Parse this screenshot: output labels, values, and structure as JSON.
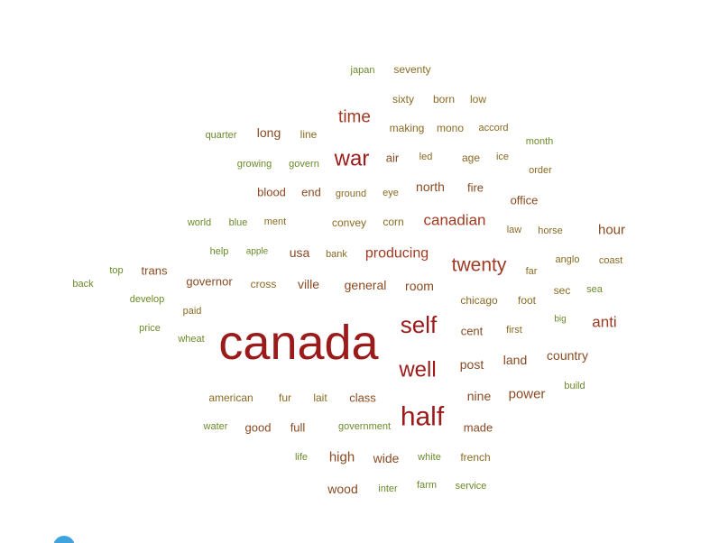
{
  "chart_data": {
    "type": "wordcloud",
    "title": "",
    "colors": {
      "dark": "#9b1b1b",
      "medium": "#a03a22",
      "brown": "#8a4a22",
      "olive": "#8a6a22",
      "green": "#6b8a2a"
    },
    "words": [
      {
        "text": "canada",
        "weight": 100,
        "tone": "dark"
      },
      {
        "text": "half",
        "weight": 48,
        "tone": "dark"
      },
      {
        "text": "self",
        "weight": 44,
        "tone": "dark"
      },
      {
        "text": "well",
        "weight": 42,
        "tone": "dark"
      },
      {
        "text": "war",
        "weight": 40,
        "tone": "dark"
      },
      {
        "text": "twenty",
        "weight": 36,
        "tone": "medium"
      },
      {
        "text": "time",
        "weight": 34,
        "tone": "medium"
      },
      {
        "text": "canadian",
        "weight": 30,
        "tone": "medium"
      },
      {
        "text": "anti",
        "weight": 30,
        "tone": "medium"
      },
      {
        "text": "producing",
        "weight": 28,
        "tone": "medium"
      },
      {
        "text": "hour",
        "weight": 26,
        "tone": "brown"
      },
      {
        "text": "power",
        "weight": 26,
        "tone": "brown"
      },
      {
        "text": "high",
        "weight": 26,
        "tone": "brown"
      },
      {
        "text": "long",
        "weight": 24,
        "tone": "brown"
      },
      {
        "text": "north",
        "weight": 24,
        "tone": "brown"
      },
      {
        "text": "usa",
        "weight": 24,
        "tone": "brown"
      },
      {
        "text": "general",
        "weight": 24,
        "tone": "brown"
      },
      {
        "text": "room",
        "weight": 24,
        "tone": "brown"
      },
      {
        "text": "post",
        "weight": 24,
        "tone": "brown"
      },
      {
        "text": "nine",
        "weight": 24,
        "tone": "brown"
      },
      {
        "text": "country",
        "weight": 22,
        "tone": "brown"
      },
      {
        "text": "land",
        "weight": 22,
        "tone": "brown"
      },
      {
        "text": "ville",
        "weight": 22,
        "tone": "brown"
      },
      {
        "text": "wide",
        "weight": 22,
        "tone": "brown"
      },
      {
        "text": "wood",
        "weight": 22,
        "tone": "brown"
      },
      {
        "text": "good",
        "weight": 20,
        "tone": "brown"
      },
      {
        "text": "made",
        "weight": 20,
        "tone": "brown"
      },
      {
        "text": "class",
        "weight": 20,
        "tone": "brown"
      },
      {
        "text": "governor",
        "weight": 20,
        "tone": "brown"
      },
      {
        "text": "trans",
        "weight": 20,
        "tone": "brown"
      },
      {
        "text": "office",
        "weight": 20,
        "tone": "brown"
      },
      {
        "text": "fire",
        "weight": 20,
        "tone": "brown"
      },
      {
        "text": "end",
        "weight": 20,
        "tone": "brown"
      },
      {
        "text": "blood",
        "weight": 20,
        "tone": "brown"
      },
      {
        "text": "air",
        "weight": 20,
        "tone": "brown"
      },
      {
        "text": "cent",
        "weight": 20,
        "tone": "brown"
      },
      {
        "text": "full",
        "weight": 20,
        "tone": "brown"
      },
      {
        "text": "age",
        "weight": 18,
        "tone": "olive"
      },
      {
        "text": "sec",
        "weight": 18,
        "tone": "olive"
      },
      {
        "text": "cross",
        "weight": 18,
        "tone": "olive"
      },
      {
        "text": "chicago",
        "weight": 18,
        "tone": "olive"
      },
      {
        "text": "foot",
        "weight": 18,
        "tone": "olive"
      },
      {
        "text": "french",
        "weight": 18,
        "tone": "olive"
      },
      {
        "text": "american",
        "weight": 18,
        "tone": "olive"
      },
      {
        "text": "fur",
        "weight": 18,
        "tone": "olive"
      },
      {
        "text": "lait",
        "weight": 18,
        "tone": "olive"
      },
      {
        "text": "convey",
        "weight": 18,
        "tone": "olive"
      },
      {
        "text": "corn",
        "weight": 18,
        "tone": "olive"
      },
      {
        "text": "line",
        "weight": 18,
        "tone": "olive"
      },
      {
        "text": "making",
        "weight": 18,
        "tone": "olive"
      },
      {
        "text": "mono",
        "weight": 18,
        "tone": "olive"
      },
      {
        "text": "born",
        "weight": 18,
        "tone": "olive"
      },
      {
        "text": "low",
        "weight": 18,
        "tone": "olive"
      },
      {
        "text": "sixty",
        "weight": 18,
        "tone": "olive"
      },
      {
        "text": "seventy",
        "weight": 18,
        "tone": "olive"
      },
      {
        "text": "accord",
        "weight": 16,
        "tone": "olive"
      },
      {
        "text": "led",
        "weight": 16,
        "tone": "olive"
      },
      {
        "text": "ice",
        "weight": 16,
        "tone": "olive"
      },
      {
        "text": "eye",
        "weight": 16,
        "tone": "olive"
      },
      {
        "text": "order",
        "weight": 16,
        "tone": "olive"
      },
      {
        "text": "law",
        "weight": 16,
        "tone": "olive"
      },
      {
        "text": "horse",
        "weight": 16,
        "tone": "olive"
      },
      {
        "text": "anglo",
        "weight": 16,
        "tone": "olive"
      },
      {
        "text": "coast",
        "weight": 16,
        "tone": "olive"
      },
      {
        "text": "first",
        "weight": 16,
        "tone": "olive"
      },
      {
        "text": "far",
        "weight": 16,
        "tone": "olive"
      },
      {
        "text": "ment",
        "weight": 16,
        "tone": "olive"
      },
      {
        "text": "paid",
        "weight": 16,
        "tone": "olive"
      },
      {
        "text": "bank",
        "weight": 16,
        "tone": "olive"
      },
      {
        "text": "ground",
        "weight": 16,
        "tone": "olive"
      },
      {
        "text": "growing",
        "weight": 16,
        "tone": "green"
      },
      {
        "text": "govern",
        "weight": 16,
        "tone": "green"
      },
      {
        "text": "quarter",
        "weight": 16,
        "tone": "green"
      },
      {
        "text": "japan",
        "weight": 16,
        "tone": "green"
      },
      {
        "text": "month",
        "weight": 16,
        "tone": "green"
      },
      {
        "text": "world",
        "weight": 16,
        "tone": "green"
      },
      {
        "text": "blue",
        "weight": 16,
        "tone": "green"
      },
      {
        "text": "help",
        "weight": 16,
        "tone": "green"
      },
      {
        "text": "apple",
        "weight": 14,
        "tone": "green"
      },
      {
        "text": "top",
        "weight": 16,
        "tone": "green"
      },
      {
        "text": "back",
        "weight": 16,
        "tone": "green"
      },
      {
        "text": "develop",
        "weight": 16,
        "tone": "green"
      },
      {
        "text": "price",
        "weight": 16,
        "tone": "green"
      },
      {
        "text": "wheat",
        "weight": 16,
        "tone": "green"
      },
      {
        "text": "big",
        "weight": 14,
        "tone": "green"
      },
      {
        "text": "sea",
        "weight": 16,
        "tone": "green"
      },
      {
        "text": "build",
        "weight": 16,
        "tone": "green"
      },
      {
        "text": "water",
        "weight": 16,
        "tone": "green"
      },
      {
        "text": "government",
        "weight": 16,
        "tone": "green"
      },
      {
        "text": "life",
        "weight": 16,
        "tone": "green"
      },
      {
        "text": "white",
        "weight": 16,
        "tone": "green"
      },
      {
        "text": "inter",
        "weight": 16,
        "tone": "green"
      },
      {
        "text": "farm",
        "weight": 16,
        "tone": "green"
      },
      {
        "text": "service",
        "weight": 16,
        "tone": "green"
      }
    ]
  }
}
